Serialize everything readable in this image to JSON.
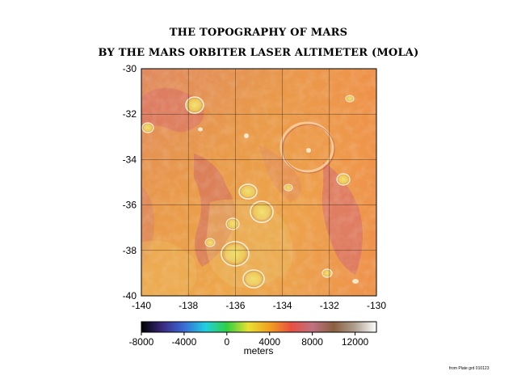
{
  "title_line1": "THE TOPOGRAPHY OF MARS",
  "title_line2": "BY THE MARS ORBITER LASER ALTIMETER (MOLA)",
  "map": {
    "lon_range": [
      -140,
      -130
    ],
    "lat_range": [
      -40,
      -30
    ],
    "lon_ticks": [
      "-140",
      "-138",
      "-136",
      "-134",
      "-132",
      "-130"
    ],
    "lat_ticks": [
      "-30",
      "-32",
      "-34",
      "-36",
      "-38",
      "-40"
    ],
    "grid": true
  },
  "colorbar": {
    "range": [
      -8000,
      14000
    ],
    "ticks": [
      "-8000",
      "-4000",
      "0",
      "4000",
      "8000",
      "12000"
    ],
    "label": "meters",
    "colors": [
      "#000000",
      "#3b2a82",
      "#3a6bd6",
      "#20d0e0",
      "#30d040",
      "#e8e030",
      "#f0a020",
      "#e85040",
      "#c07080",
      "#8a6040",
      "#b0a090",
      "#ffffff"
    ]
  },
  "footnote": "from Plate grd 010123"
}
